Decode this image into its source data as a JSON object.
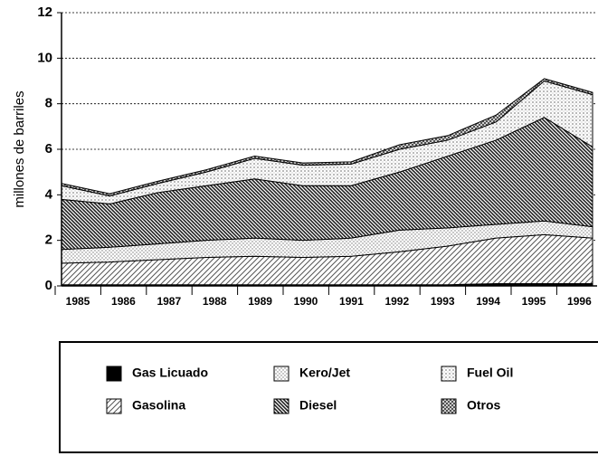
{
  "chart_data": {
    "type": "stacked_area",
    "ylabel": "millones de barriles",
    "categories": [
      "1985",
      "1986",
      "1987",
      "1988",
      "1989",
      "1990",
      "1991",
      "1992",
      "1993",
      "1994",
      "1995",
      "1996"
    ],
    "ylim": [
      0,
      12
    ],
    "yticks": [
      0,
      2,
      4,
      6,
      8,
      10,
      12
    ],
    "grid": true,
    "series": [
      {
        "name": "Gas Licuado",
        "color": "#000000",
        "values": [
          0.05,
          0.05,
          0.05,
          0.05,
          0.05,
          0.05,
          0.05,
          0.05,
          0.05,
          0.1,
          0.1,
          0.1
        ]
      },
      {
        "name": "Gasolina",
        "color": "#555555",
        "values": [
          0.95,
          1.0,
          1.1,
          1.2,
          1.25,
          1.2,
          1.25,
          1.45,
          1.7,
          2.0,
          2.15,
          2.0
        ]
      },
      {
        "name": "Kero/Jet",
        "color": "#777777",
        "values": [
          0.6,
          0.65,
          0.7,
          0.75,
          0.8,
          0.75,
          0.8,
          0.95,
          0.8,
          0.6,
          0.6,
          0.5
        ]
      },
      {
        "name": "Diesel",
        "color": "#222222",
        "values": [
          2.2,
          1.9,
          2.25,
          2.4,
          2.6,
          2.4,
          2.3,
          2.55,
          3.15,
          3.7,
          4.55,
          3.5
        ]
      },
      {
        "name": "Fuel Oil",
        "color": "#888888",
        "values": [
          0.6,
          0.35,
          0.4,
          0.6,
          0.9,
          0.9,
          0.95,
          1.0,
          0.7,
          0.8,
          1.6,
          2.3
        ]
      },
      {
        "name": "Otros",
        "color": "#444444",
        "values": [
          0.1,
          0.1,
          0.1,
          0.1,
          0.1,
          0.1,
          0.1,
          0.2,
          0.2,
          0.3,
          0.1,
          0.1
        ]
      }
    ]
  }
}
